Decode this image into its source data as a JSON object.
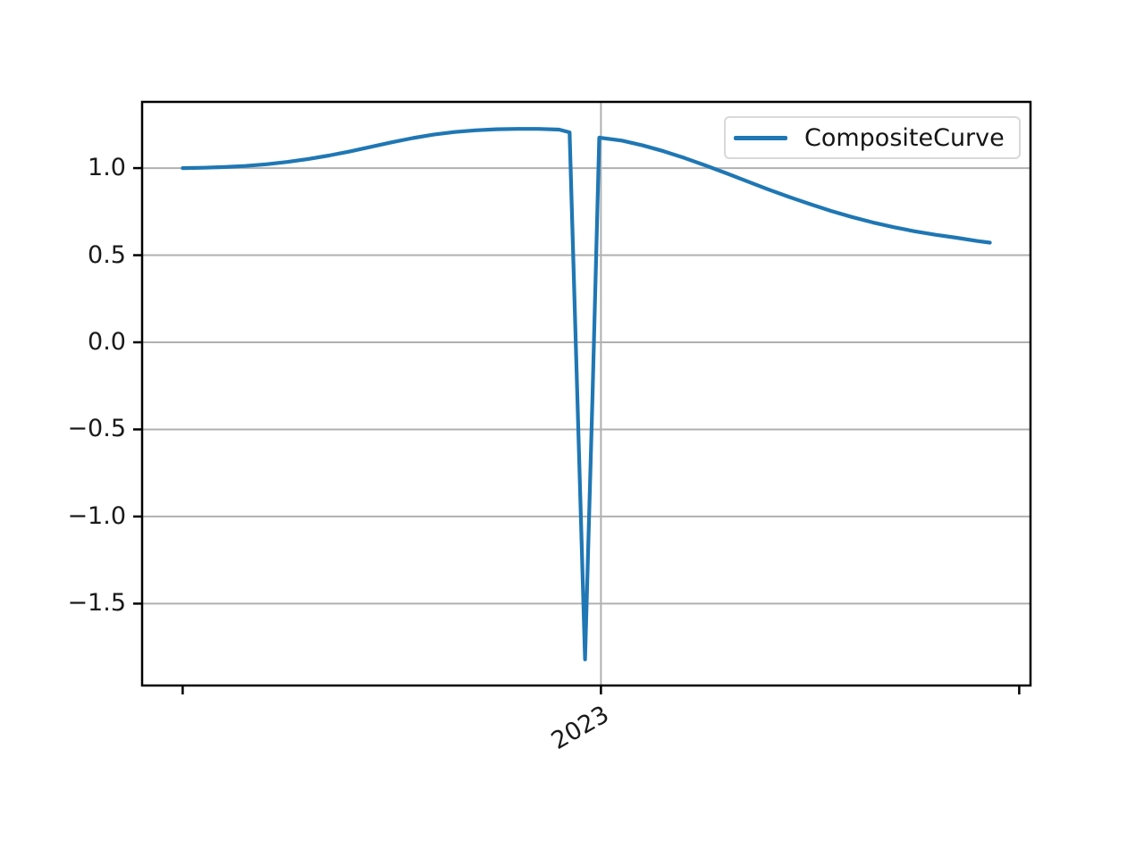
{
  "figure": {
    "background": "#ffffff",
    "legend": {
      "position": "upper right",
      "entries": [
        {
          "label": "CompositeCurve",
          "color": "#1f77b4"
        }
      ]
    }
  },
  "chart_data": {
    "type": "line",
    "title": "",
    "xlabel": "",
    "ylabel": "",
    "grid": true,
    "legend_position": "upper right",
    "xlim": [
      2021.903,
      2024.027
    ],
    "ylim": [
      -1.97,
      1.38
    ],
    "xticks": [
      {
        "value": 2022,
        "label": "",
        "grid": false
      },
      {
        "value": 2023,
        "label": "2023",
        "grid": true
      },
      {
        "value": 2024,
        "label": "",
        "grid": false
      }
    ],
    "xtick_label_rotation_deg": 30,
    "yticks": [
      {
        "value": 1.0,
        "label": "1.0",
        "grid": true
      },
      {
        "value": 0.5,
        "label": "0.5",
        "grid": true
      },
      {
        "value": 0.0,
        "label": "0.0",
        "grid": true
      },
      {
        "value": -0.5,
        "label": "−0.5",
        "grid": true
      },
      {
        "value": -1.0,
        "label": "−1.0",
        "grid": true
      },
      {
        "value": -1.5,
        "label": "−1.5",
        "grid": true
      }
    ],
    "colors": {
      "line": "#1f77b4",
      "grid": "#b0b0b0",
      "spine": "#000000",
      "tick": "#000000",
      "tick_label": "#1a1a1a"
    },
    "series": [
      {
        "name": "CompositeCurve",
        "color": "#1f77b4",
        "points": [
          [
            2022.0,
            1.0
          ],
          [
            2022.05,
            1.002
          ],
          [
            2022.1,
            1.006
          ],
          [
            2022.15,
            1.012
          ],
          [
            2022.2,
            1.022
          ],
          [
            2022.25,
            1.035
          ],
          [
            2022.3,
            1.052
          ],
          [
            2022.35,
            1.072
          ],
          [
            2022.4,
            1.096
          ],
          [
            2022.45,
            1.122
          ],
          [
            2022.5,
            1.148
          ],
          [
            2022.55,
            1.172
          ],
          [
            2022.6,
            1.192
          ],
          [
            2022.65,
            1.207
          ],
          [
            2022.7,
            1.217
          ],
          [
            2022.75,
            1.223
          ],
          [
            2022.8,
            1.225
          ],
          [
            2022.85,
            1.225
          ],
          [
            2022.9,
            1.221
          ],
          [
            2022.925,
            1.205
          ],
          [
            2022.944,
            -0.35
          ],
          [
            2022.962,
            -1.82
          ],
          [
            2022.98,
            -0.3
          ],
          [
            2022.996,
            1.175
          ],
          [
            2023.05,
            1.158
          ],
          [
            2023.1,
            1.13
          ],
          [
            2023.15,
            1.097
          ],
          [
            2023.2,
            1.058
          ],
          [
            2023.25,
            1.015
          ],
          [
            2023.3,
            0.97
          ],
          [
            2023.35,
            0.924
          ],
          [
            2023.4,
            0.878
          ],
          [
            2023.45,
            0.834
          ],
          [
            2023.5,
            0.793
          ],
          [
            2023.55,
            0.754
          ],
          [
            2023.6,
            0.719
          ],
          [
            2023.65,
            0.688
          ],
          [
            2023.7,
            0.661
          ],
          [
            2023.75,
            0.637
          ],
          [
            2023.8,
            0.617
          ],
          [
            2023.85,
            0.6
          ],
          [
            2023.9,
            0.581
          ],
          [
            2023.93,
            0.572
          ]
        ]
      }
    ]
  }
}
